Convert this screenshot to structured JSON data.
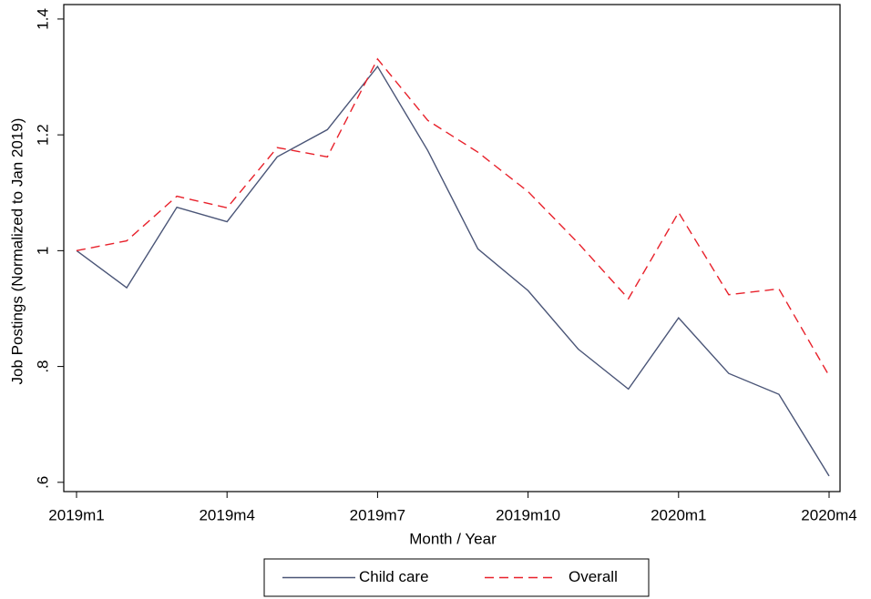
{
  "chart_data": {
    "type": "line",
    "xlabel": "Month / Year",
    "ylabel": "Job Postings (Normalized to Jan 2019)",
    "categories": [
      "2019m1",
      null,
      null,
      "2019m4",
      null,
      null,
      "2019m7",
      null,
      null,
      "2019m10",
      null,
      null,
      "2020m1",
      null,
      null,
      "2020m4"
    ],
    "series": [
      {
        "name": "Child care",
        "color": "#4a5577",
        "dash": "solid",
        "values": [
          1.0,
          0.936,
          1.075,
          1.05,
          1.162,
          1.209,
          1.318,
          1.173,
          1.003,
          0.931,
          0.83,
          0.761,
          0.884,
          0.788,
          0.752,
          0.611
        ]
      },
      {
        "name": "Overall",
        "color": "#e8212b",
        "dash": "dashed",
        "values": [
          1.0,
          1.017,
          1.094,
          1.074,
          1.178,
          1.162,
          1.331,
          1.225,
          1.17,
          1.102,
          1.013,
          0.917,
          1.066,
          0.924,
          0.934,
          0.784
        ]
      }
    ],
    "ylim": [
      0.584,
      1.425
    ],
    "yticks": [
      {
        "value": 0.6,
        "label": ".6"
      },
      {
        "value": 0.8,
        "label": ".8"
      },
      1,
      1.2,
      1.4
    ],
    "grid": false,
    "legend": "bottom"
  }
}
